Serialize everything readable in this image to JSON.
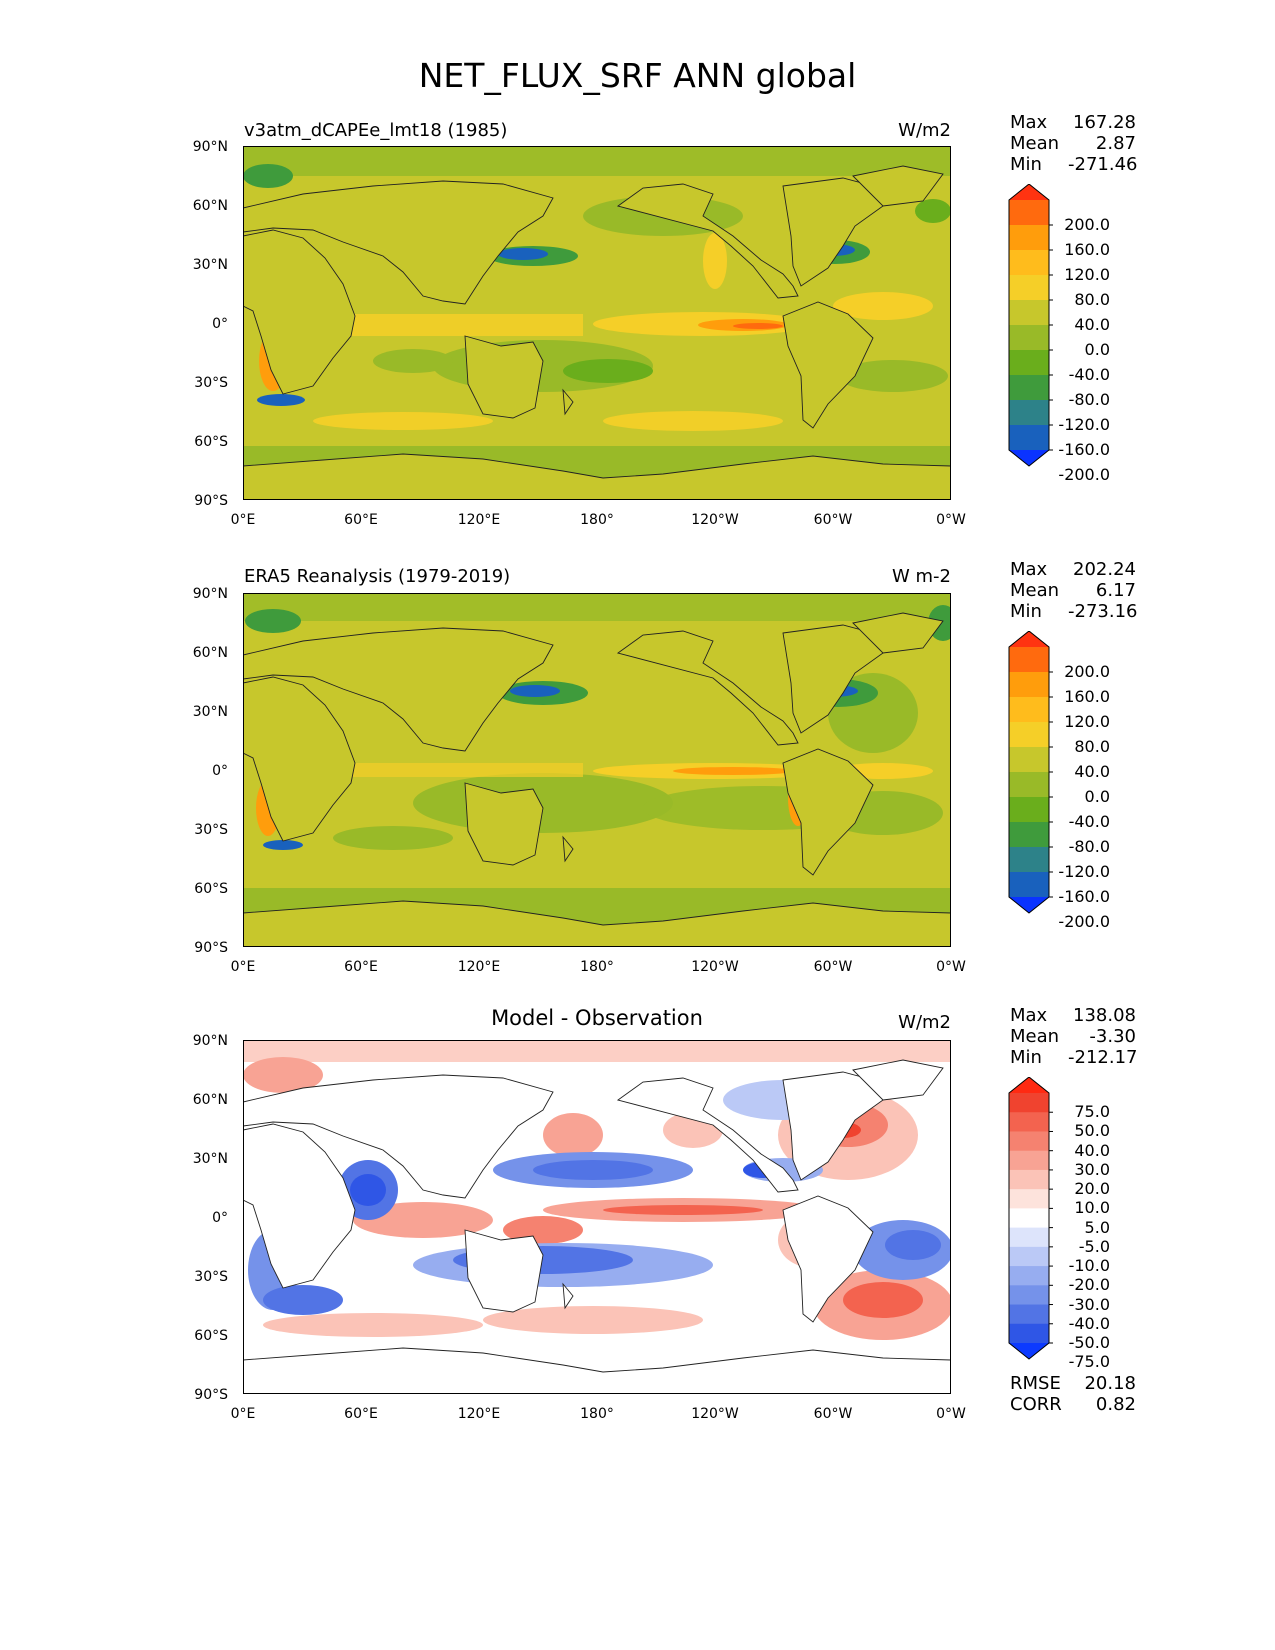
{
  "figure": {
    "title": "NET_FLUX_SRF ANN global"
  },
  "axes": {
    "lat_ticks": [
      "90°N",
      "60°N",
      "30°N",
      "0°",
      "30°S",
      "60°S",
      "90°S"
    ],
    "lon_ticks": [
      "0°E",
      "60°E",
      "120°E",
      "180°",
      "120°W",
      "60°W",
      "0°W"
    ]
  },
  "panels": [
    {
      "title": "v3atm_dCAPEe_lmt18 (1985)",
      "units": "W/m2",
      "stats": [
        {
          "k": "Max",
          "v": "167.28"
        },
        {
          "k": "Mean",
          "v": "2.87"
        },
        {
          "k": "Min",
          "v": "-271.46"
        }
      ],
      "colorbar": {
        "levels": [
          "200.0",
          "160.0",
          "120.0",
          "80.0",
          "40.0",
          "0.0",
          "-40.0",
          "-80.0",
          "-120.0",
          "-160.0",
          "-200.0"
        ],
        "colors": [
          "#ff3311",
          "#ff6a0e",
          "#ff9d0c",
          "#ffbc1c",
          "#f5cf28",
          "#c7c72c",
          "#99ba28",
          "#6aae1c",
          "#3f9b3c",
          "#2d8289",
          "#1961bd",
          "#0a33ff"
        ]
      }
    },
    {
      "title": "ERA5 Reanalysis (1979-2019)",
      "units": "W m-2",
      "stats": [
        {
          "k": "Max",
          "v": "202.24"
        },
        {
          "k": "Mean",
          "v": "6.17"
        },
        {
          "k": "Min",
          "v": "-273.16"
        }
      ],
      "colorbar": {
        "levels": [
          "200.0",
          "160.0",
          "120.0",
          "80.0",
          "40.0",
          "0.0",
          "-40.0",
          "-80.0",
          "-120.0",
          "-160.0",
          "-200.0"
        ],
        "colors": [
          "#ff3311",
          "#ff6a0e",
          "#ff9d0c",
          "#ffbc1c",
          "#f5cf28",
          "#c7c72c",
          "#99ba28",
          "#6aae1c",
          "#3f9b3c",
          "#2d8289",
          "#1961bd",
          "#0a33ff"
        ]
      }
    },
    {
      "title": "Model - Observation",
      "units": "W/m2",
      "stats": [
        {
          "k": "Max",
          "v": "138.08"
        },
        {
          "k": "Mean",
          "v": "-3.30"
        },
        {
          "k": "Min",
          "v": "-212.17"
        }
      ],
      "extra_stats": [
        {
          "k": "RMSE",
          "v": "20.18"
        },
        {
          "k": "CORR",
          "v": "0.82"
        }
      ],
      "colorbar": {
        "levels": [
          "75.0",
          "50.0",
          "40.0",
          "30.0",
          "20.0",
          "10.0",
          "5.0",
          "-5.0",
          "-10.0",
          "-20.0",
          "-30.0",
          "-40.0",
          "-50.0",
          "-75.0"
        ],
        "colors": [
          "#ff2a12",
          "#f0432f",
          "#f3634f",
          "#f58270",
          "#f8a394",
          "#fbc3b7",
          "#fde3dc",
          "#ffffff",
          "#dde4fb",
          "#bbc9f6",
          "#97adf0",
          "#7592ea",
          "#5274e5",
          "#2f56e6",
          "#0c3aff"
        ]
      }
    }
  ]
}
